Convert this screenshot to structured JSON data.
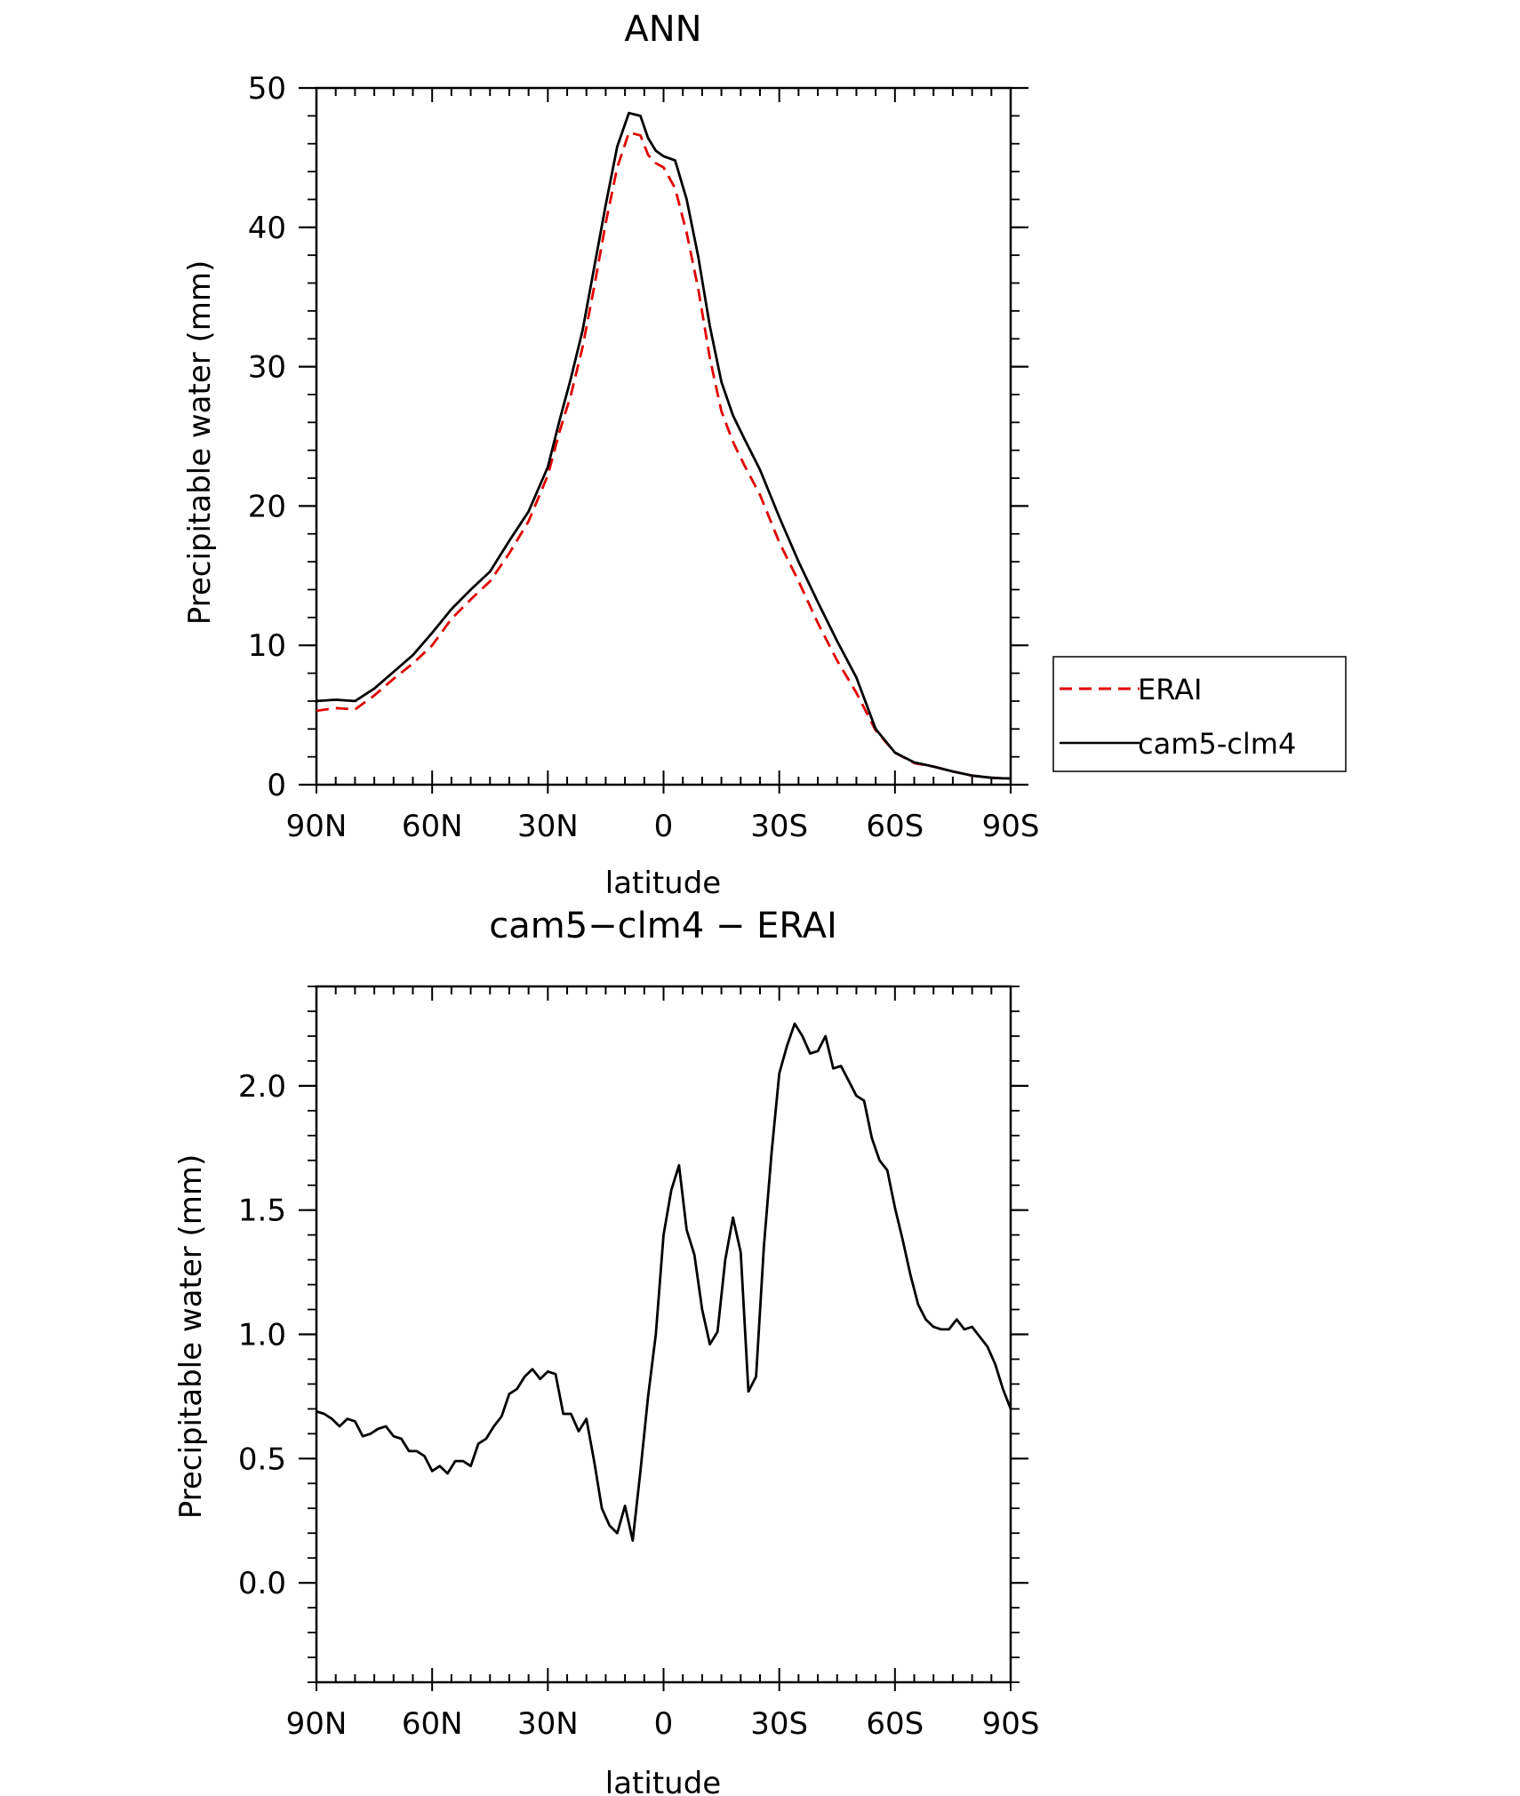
{
  "chart_data": [
    {
      "type": "line",
      "title": "ANN",
      "xlabel": "latitude",
      "ylabel": "Precipitable water (mm)",
      "xlim": [
        90,
        -90
      ],
      "ylim": [
        0,
        50
      ],
      "x_ticks": [
        {
          "value": 90,
          "label": "90N"
        },
        {
          "value": 60,
          "label": "60N"
        },
        {
          "value": 30,
          "label": "30N"
        },
        {
          "value": 0,
          "label": "0"
        },
        {
          "value": -30,
          "label": "30S"
        },
        {
          "value": -60,
          "label": "60S"
        },
        {
          "value": -90,
          "label": "90S"
        }
      ],
      "y_ticks": [
        {
          "value": 0,
          "label": "0"
        },
        {
          "value": 10,
          "label": "10"
        },
        {
          "value": 20,
          "label": "20"
        },
        {
          "value": 30,
          "label": "30"
        },
        {
          "value": 40,
          "label": "40"
        },
        {
          "value": 50,
          "label": "50"
        }
      ],
      "legend_position": "right",
      "series": [
        {
          "name": "ERAI",
          "color": "#e00000",
          "dash": "dashed",
          "x": [
            90,
            85,
            80,
            75,
            70,
            65,
            60,
            55,
            50,
            45,
            40,
            35,
            30,
            27,
            24,
            21,
            18,
            15,
            12,
            9,
            6,
            4,
            2,
            0,
            -3,
            -6,
            -9,
            -12,
            -15,
            -18,
            -21,
            -25,
            -30,
            -35,
            -40,
            -45,
            -50,
            -55,
            -60,
            -65,
            -70,
            -75,
            -80,
            -85,
            -88,
            -90
          ],
          "y": [
            5.3,
            5.5,
            5.4,
            6.4,
            7.6,
            8.7,
            10.0,
            11.9,
            13.3,
            14.6,
            16.6,
            18.9,
            22.2,
            25.3,
            28.0,
            31.4,
            35.7,
            40.3,
            44.3,
            46.8,
            46.6,
            45.2,
            44.6,
            44.3,
            42.8,
            39.6,
            35.6,
            30.6,
            26.8,
            24.6,
            22.9,
            20.8,
            17.4,
            14.6,
            11.6,
            8.9,
            6.6,
            3.9,
            2.3,
            1.55,
            1.3,
            0.95,
            0.65,
            0.5,
            0.45,
            0.45
          ]
        },
        {
          "name": "cam5-clm4",
          "color": "#000000",
          "dash": "solid",
          "x": [
            90,
            85,
            80,
            75,
            70,
            65,
            60,
            55,
            50,
            45,
            40,
            35,
            30,
            27,
            24,
            21,
            18,
            15,
            12,
            9,
            6,
            4,
            2,
            0,
            -3,
            -6,
            -9,
            -12,
            -15,
            -18,
            -21,
            -25,
            -30,
            -35,
            -40,
            -45,
            -50,
            -55,
            -60,
            -65,
            -70,
            -75,
            -80,
            -85,
            -88,
            -90
          ],
          "y": [
            6.0,
            6.1,
            6.0,
            6.9,
            8.1,
            9.3,
            10.9,
            12.6,
            14.0,
            15.3,
            17.5,
            19.6,
            22.8,
            26.1,
            29.2,
            32.6,
            37.1,
            41.6,
            45.8,
            48.2,
            48.0,
            46.4,
            45.5,
            45.1,
            44.8,
            42.0,
            37.9,
            32.9,
            28.9,
            26.5,
            24.8,
            22.6,
            19.2,
            16.0,
            13.1,
            10.3,
            7.7,
            4.0,
            2.3,
            1.6,
            1.3,
            0.95,
            0.65,
            0.5,
            0.45,
            0.45
          ]
        }
      ]
    },
    {
      "type": "line",
      "title": "cam5−clm4 − ERAI",
      "xlabel": "latitude",
      "ylabel": "Precipitable water (mm)",
      "xlim": [
        90,
        -90
      ],
      "ylim": [
        -0.4,
        2.4
      ],
      "x_ticks": [
        {
          "value": 90,
          "label": "90N"
        },
        {
          "value": 60,
          "label": "60N"
        },
        {
          "value": 30,
          "label": "30N"
        },
        {
          "value": 0,
          "label": "0"
        },
        {
          "value": -30,
          "label": "30S"
        },
        {
          "value": -60,
          "label": "60S"
        },
        {
          "value": -90,
          "label": "90S"
        }
      ],
      "y_ticks": [
        {
          "value": 0.0,
          "label": "0.0"
        },
        {
          "value": 0.5,
          "label": "0.5"
        },
        {
          "value": 1.0,
          "label": "1.0"
        },
        {
          "value": 1.5,
          "label": "1.5"
        },
        {
          "value": 2.0,
          "label": "2.0"
        }
      ],
      "series": [
        {
          "color": "#000000",
          "dash": "solid",
          "x": [
            90,
            88,
            86,
            84,
            82,
            80,
            78,
            76,
            74,
            72,
            70,
            68,
            66,
            64,
            62,
            60,
            58,
            56,
            54,
            52,
            50,
            48,
            46,
            44,
            42,
            40,
            38,
            36,
            34,
            32,
            30,
            28,
            26,
            24,
            22,
            20,
            18,
            16,
            14,
            12,
            10,
            8,
            6,
            4,
            2,
            0,
            -2,
            -4,
            -6,
            -8,
            -10,
            -12,
            -14,
            -16,
            -18,
            -20,
            -22,
            -24,
            -26,
            -28,
            -30,
            -32,
            -34,
            -36,
            -38,
            -40,
            -42,
            -44,
            -46,
            -48,
            -50,
            -52,
            -54,
            -56,
            -58,
            -60,
            -62,
            -64,
            -66,
            -68,
            -70,
            -72,
            -74,
            -76,
            -78,
            -80,
            -82,
            -84,
            -86,
            -88,
            -90
          ],
          "y": [
            0.69,
            0.68,
            0.66,
            0.63,
            0.66,
            0.65,
            0.59,
            0.6,
            0.62,
            0.63,
            0.59,
            0.58,
            0.53,
            0.53,
            0.51,
            0.45,
            0.47,
            0.44,
            0.49,
            0.49,
            0.47,
            0.56,
            0.58,
            0.63,
            0.67,
            0.76,
            0.78,
            0.83,
            0.86,
            0.82,
            0.85,
            0.84,
            0.68,
            0.68,
            0.61,
            0.66,
            0.49,
            0.3,
            0.23,
            0.2,
            0.31,
            0.17,
            0.45,
            0.75,
            1.0,
            1.4,
            1.58,
            1.68,
            1.42,
            1.32,
            1.1,
            0.96,
            1.01,
            1.3,
            1.47,
            1.33,
            0.77,
            0.83,
            1.35,
            1.73,
            2.05,
            2.16,
            2.25,
            2.2,
            2.13,
            2.14,
            2.2,
            2.07,
            2.08,
            2.02,
            1.96,
            1.94,
            1.79,
            1.7,
            1.66,
            1.51,
            1.38,
            1.24,
            1.12,
            1.06,
            1.03,
            1.02,
            1.02,
            1.06,
            1.02,
            1.03,
            0.99,
            0.95,
            0.88,
            0.78,
            0.7
          ]
        }
      ]
    }
  ]
}
